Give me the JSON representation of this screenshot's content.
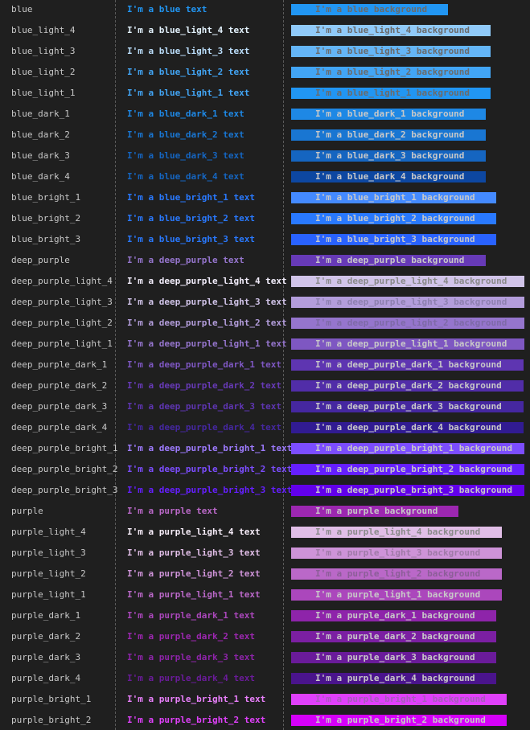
{
  "rows": [
    {
      "name": "blue",
      "text": "I'm a blue text",
      "bg_text": "I'm a blue background",
      "color": "#2196f3",
      "text_on_bg": "#6b6b6b"
    },
    {
      "name": "blue_light_4",
      "text": "I'm a blue_light_4 text",
      "bg_text": "I'm a blue_light_4 background",
      "color": "#90caf9",
      "text_on_bg": "#6b6b6b",
      "text_color": "#e3f2fd"
    },
    {
      "name": "blue_light_3",
      "text": "I'm a blue_light_3 text",
      "bg_text": "I'm a blue_light_3 background",
      "color": "#64b5f6",
      "text_on_bg": "#6b6b6b",
      "text_color": "#bbdefb"
    },
    {
      "name": "blue_light_2",
      "text": "I'm a blue_light_2 text",
      "bg_text": "I'm a blue_light_2 background",
      "color": "#42a5f5",
      "text_on_bg": "#6b6b6b"
    },
    {
      "name": "blue_light_1",
      "text": "I'm a blue_light_1 text",
      "bg_text": "I'm a blue_light_1 background",
      "color": "#2196f3",
      "text_on_bg": "#6b6b6b",
      "text_color": "#42a5f5"
    },
    {
      "name": "blue_dark_1",
      "text": "I'm a blue_dark_1 text",
      "bg_text": "I'm a blue_dark_1 background",
      "color": "#1e88e5",
      "text_on_bg": "#c8c8c8"
    },
    {
      "name": "blue_dark_2",
      "text": "I'm a blue_dark_2 text",
      "bg_text": "I'm a blue_dark_2 background",
      "color": "#1976d2",
      "text_on_bg": "#c8c8c8"
    },
    {
      "name": "blue_dark_3",
      "text": "I'm a blue_dark_3 text",
      "bg_text": "I'm a blue_dark_3 background",
      "color": "#1565c0",
      "text_on_bg": "#c8c8c8"
    },
    {
      "name": "blue_dark_4",
      "text": "I'm a blue_dark_4 text",
      "bg_text": "I'm a blue_dark_4 background",
      "color": "#0d47a1",
      "text_on_bg": "#c8c8c8",
      "text_color": "#1565c0"
    },
    {
      "name": "blue_bright_1",
      "text": "I'm a blue_bright_1 text",
      "bg_text": "I'm a blue_bright_1 background",
      "color": "#448aff",
      "text_on_bg": "#c8c8c8",
      "text_color": "#2979ff"
    },
    {
      "name": "blue_bright_2",
      "text": "I'm a blue_bright_2 text",
      "bg_text": "I'm a blue_bright_2 background",
      "color": "#2979ff",
      "text_on_bg": "#c8c8c8"
    },
    {
      "name": "blue_bright_3",
      "text": "I'm a blue_bright_3 text",
      "bg_text": "I'm a blue_bright_3 background",
      "color": "#2962ff",
      "text_on_bg": "#c8c8c8",
      "text_color": "#2979ff"
    },
    {
      "name": "deep_purple",
      "text": "I'm a deep_purple text",
      "bg_text": "I'm a deep_purple background",
      "color": "#673ab7",
      "text_on_bg": "#c8c8c8",
      "text_color": "#9575cd"
    },
    {
      "name": "deep_purple_light_4",
      "text": "I'm a deep_purple_light_4 text",
      "bg_text": "I'm a deep_purple_light_4 background",
      "color": "#d1c4e9",
      "text_on_bg": "#8a8a8a",
      "text_color": "#f3eefc"
    },
    {
      "name": "deep_purple_light_3",
      "text": "I'm a deep_purple_light_3 text",
      "bg_text": "I'm a deep_purple_light_3 background",
      "color": "#b39ddb",
      "text_on_bg": "#8e80b0",
      "text_color": "#d1c4e9"
    },
    {
      "name": "deep_purple_light_2",
      "text": "I'm a deep_purple_light_2 text",
      "bg_text": "I'm a deep_purple_light_2 background",
      "color": "#9575cd",
      "text_on_bg": "#7e6aa8",
      "text_color": "#b39ddb"
    },
    {
      "name": "deep_purple_light_1",
      "text": "I'm a deep_purple_light_1 text",
      "bg_text": "I'm a deep_purple_light_1 background",
      "color": "#7e57c2",
      "text_on_bg": "#c8c8c8",
      "text_color": "#9575cd"
    },
    {
      "name": "deep_purple_dark_1",
      "text": "I'm a deep_purple_dark_1 text",
      "bg_text": "I'm a deep_purple_dark_1 background",
      "color": "#5e35b1",
      "text_on_bg": "#c8c8c8",
      "text_color": "#7e57c2"
    },
    {
      "name": "deep_purple_dark_2",
      "text": "I'm a deep_purple_dark_2 text",
      "bg_text": "I'm a deep_purple_dark_2 background",
      "color": "#512da8",
      "text_on_bg": "#c8c8c8",
      "text_color": "#673ab7"
    },
    {
      "name": "deep_purple_dark_3",
      "text": "I'm a deep_purple_dark_3 text",
      "bg_text": "I'm a deep_purple_dark_3 background",
      "color": "#4527a0",
      "text_on_bg": "#c8c8c8",
      "text_color": "#5e35b1"
    },
    {
      "name": "deep_purple_dark_4",
      "text": "I'm a deep_purple_dark_4 text",
      "bg_text": "I'm a deep_purple_dark_4 background",
      "color": "#311b92",
      "text_on_bg": "#c8c8c8",
      "text_color": "#4527a0"
    },
    {
      "name": "deep_purple_bright_1",
      "text": "I'm a deep_purple_bright_1 text",
      "bg_text": "I'm a deep_purple_bright_1 background",
      "color": "#7c4dff",
      "text_on_bg": "#c8c8c8",
      "text_color": "#9e7bff"
    },
    {
      "name": "deep_purple_bright_2",
      "text": "I'm a deep_purple_bright_2 text",
      "bg_text": "I'm a deep_purple_bright_2 background",
      "color": "#651fff",
      "text_on_bg": "#c8c8c8",
      "text_color": "#7c4dff"
    },
    {
      "name": "deep_purple_bright_3",
      "text": "I'm a deep_purple_bright_3 text",
      "bg_text": "I'm a deep_purple_bright_3 background",
      "color": "#6200ea",
      "text_on_bg": "#c8c8c8",
      "text_color": "#651fff"
    },
    {
      "name": "purple",
      "text": "I'm a purple text",
      "bg_text": "I'm a purple background",
      "color": "#9c27b0",
      "text_on_bg": "#c8c8c8",
      "text_color": "#ba68c8"
    },
    {
      "name": "purple_light_4",
      "text": "I'm a purple_light_4 text",
      "bg_text": "I'm a purple_light_4 background",
      "color": "#e1bee7",
      "text_on_bg": "#8a8a8a",
      "text_color": "#f8eefa"
    },
    {
      "name": "purple_light_3",
      "text": "I'm a purple_light_3 text",
      "bg_text": "I'm a purple_light_3 background",
      "color": "#ce93d8",
      "text_on_bg": "#a07aa8",
      "text_color": "#e1bee7"
    },
    {
      "name": "purple_light_2",
      "text": "I'm a purple_light_2 text",
      "bg_text": "I'm a purple_light_2 background",
      "color": "#ba68c8",
      "text_on_bg": "#8c5e98",
      "text_color": "#ce93d8"
    },
    {
      "name": "purple_light_1",
      "text": "I'm a purple_light_1 text",
      "bg_text": "I'm a purple_light_1 background",
      "color": "#ab47bc",
      "text_on_bg": "#c8c8c8",
      "text_color": "#ba68c8"
    },
    {
      "name": "purple_dark_1",
      "text": "I'm a purple_dark_1 text",
      "bg_text": "I'm a purple_dark_1 background",
      "color": "#8e24aa",
      "text_on_bg": "#c8c8c8",
      "text_color": "#ab47bc"
    },
    {
      "name": "purple_dark_2",
      "text": "I'm a purple_dark_2 text",
      "bg_text": "I'm a purple_dark_2 background",
      "color": "#7b1fa2",
      "text_on_bg": "#c8c8c8",
      "text_color": "#9c27b0"
    },
    {
      "name": "purple_dark_3",
      "text": "I'm a purple_dark_3 text",
      "bg_text": "I'm a purple_dark_3 background",
      "color": "#6a1b9a",
      "text_on_bg": "#c8c8c8",
      "text_color": "#8e24aa"
    },
    {
      "name": "purple_dark_4",
      "text": "I'm a purple_dark_4 text",
      "bg_text": "I'm a purple_dark_4 background",
      "color": "#4a148c",
      "text_on_bg": "#c8c8c8",
      "text_color": "#6a1b9a"
    },
    {
      "name": "purple_bright_1",
      "text": "I'm a purple_bright_1 text",
      "bg_text": "I'm a purple_bright_1 background",
      "color": "#e040fb",
      "text_on_bg": "#a85cbc",
      "text_color": "#ea80fc"
    },
    {
      "name": "purple_bright_2",
      "text": "I'm a purple_bright_2 text",
      "bg_text": "I'm a purple_bright_2 background",
      "color": "#d500f9",
      "text_on_bg": "#c8c8c8",
      "text_color": "#e040fb"
    }
  ]
}
